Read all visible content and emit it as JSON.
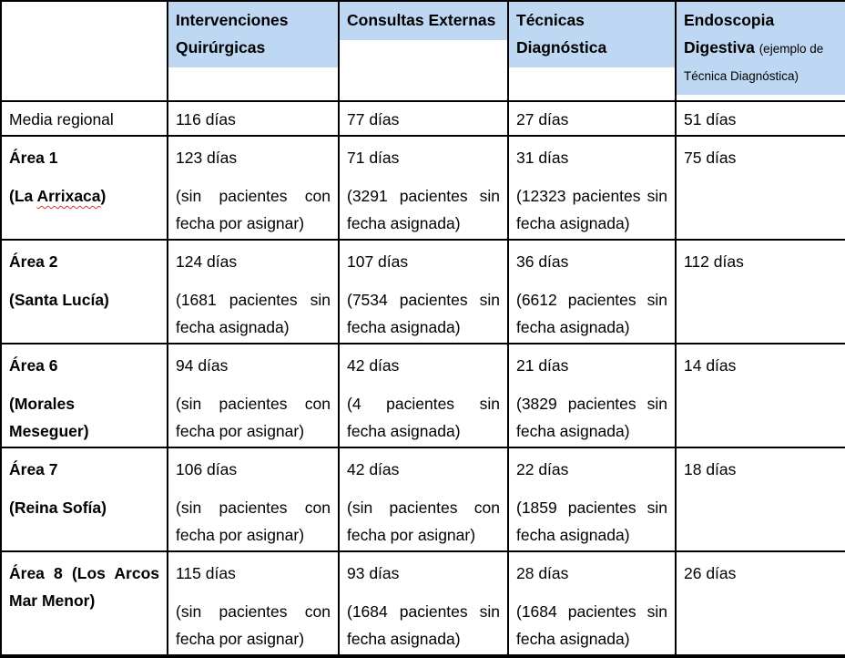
{
  "colors": {
    "header_highlight": "#bed7f2",
    "border": "#000000",
    "spellcheck_underline": "#e03131"
  },
  "header": {
    "col1": "Intervenciones Quirúrgicas",
    "col2": "Consultas Externas",
    "col3": "Técnicas Diagnóstica",
    "col4_title": "Endoscopia Digestiva",
    "col4_subtitle": "(ejemplo de Técnica Diagnóstica)"
  },
  "rows": [
    {
      "label": "Media regional",
      "cells": [
        {
          "value": "116 días",
          "note": ""
        },
        {
          "value": "77 días",
          "note": ""
        },
        {
          "value": "27 días",
          "note": ""
        },
        {
          "value": "51 días",
          "note": ""
        }
      ]
    },
    {
      "label": "Área 1",
      "sublabel_prefix": "(La ",
      "sublabel_misspelled": "Arrixaca",
      "sublabel_suffix": ")",
      "cells": [
        {
          "value": "123 días",
          "note": "(sin pacientes con fecha por asignar)"
        },
        {
          "value": "71 días",
          "note": "(3291 pacientes sin fecha asignada)"
        },
        {
          "value": "31 días",
          "note": "(12323 pacientes sin fecha asignada)"
        },
        {
          "value": "75 días",
          "note": ""
        }
      ]
    },
    {
      "label": "Área 2",
      "sublabel": "(Santa Lucía)",
      "cells": [
        {
          "value": "124 días",
          "note": "(1681 pacientes sin fecha asignada)"
        },
        {
          "value": "107 días",
          "note": "(7534 pacientes sin fecha asignada)"
        },
        {
          "value": "36 días",
          "note": "(6612 pacientes sin fecha asignada)"
        },
        {
          "value": "112 días",
          "note": ""
        }
      ]
    },
    {
      "label": "Área 6",
      "sublabel_line1": "(Morales",
      "sublabel_line2": "Meseguer)",
      "cells": [
        {
          "value": "94 días",
          "note": "(sin pacientes con fecha por asignar)"
        },
        {
          "value": "42 días",
          "note": "(4 pacientes sin fecha asignada)"
        },
        {
          "value": "21 días",
          "note": "(3829 pacientes sin fecha asignada)"
        },
        {
          "value": "14 días",
          "note": ""
        }
      ]
    },
    {
      "label": "Área 7",
      "sublabel": "(Reina Sofía)",
      "cells": [
        {
          "value": "106 días",
          "note": "(sin pacientes con fecha por asignar)"
        },
        {
          "value": "42 días",
          "note": "(sin pacientes con fecha por asignar)"
        },
        {
          "value": "22 días",
          "note": "(1859 pacientes sin fecha asignada)"
        },
        {
          "value": "18 días",
          "note": ""
        }
      ]
    },
    {
      "label_line1": "Área 8 (Los Arcos",
      "label_line2": "Mar Menor)",
      "cells": [
        {
          "value": "115 días",
          "note": "(sin pacientes con fecha por asignar)"
        },
        {
          "value": "93 días",
          "note": "(1684 pacientes sin fecha asignada)"
        },
        {
          "value": "28 días",
          "note": "(1684 pacientes sin fecha asignada)"
        },
        {
          "value": "26 días",
          "note": ""
        }
      ]
    }
  ]
}
